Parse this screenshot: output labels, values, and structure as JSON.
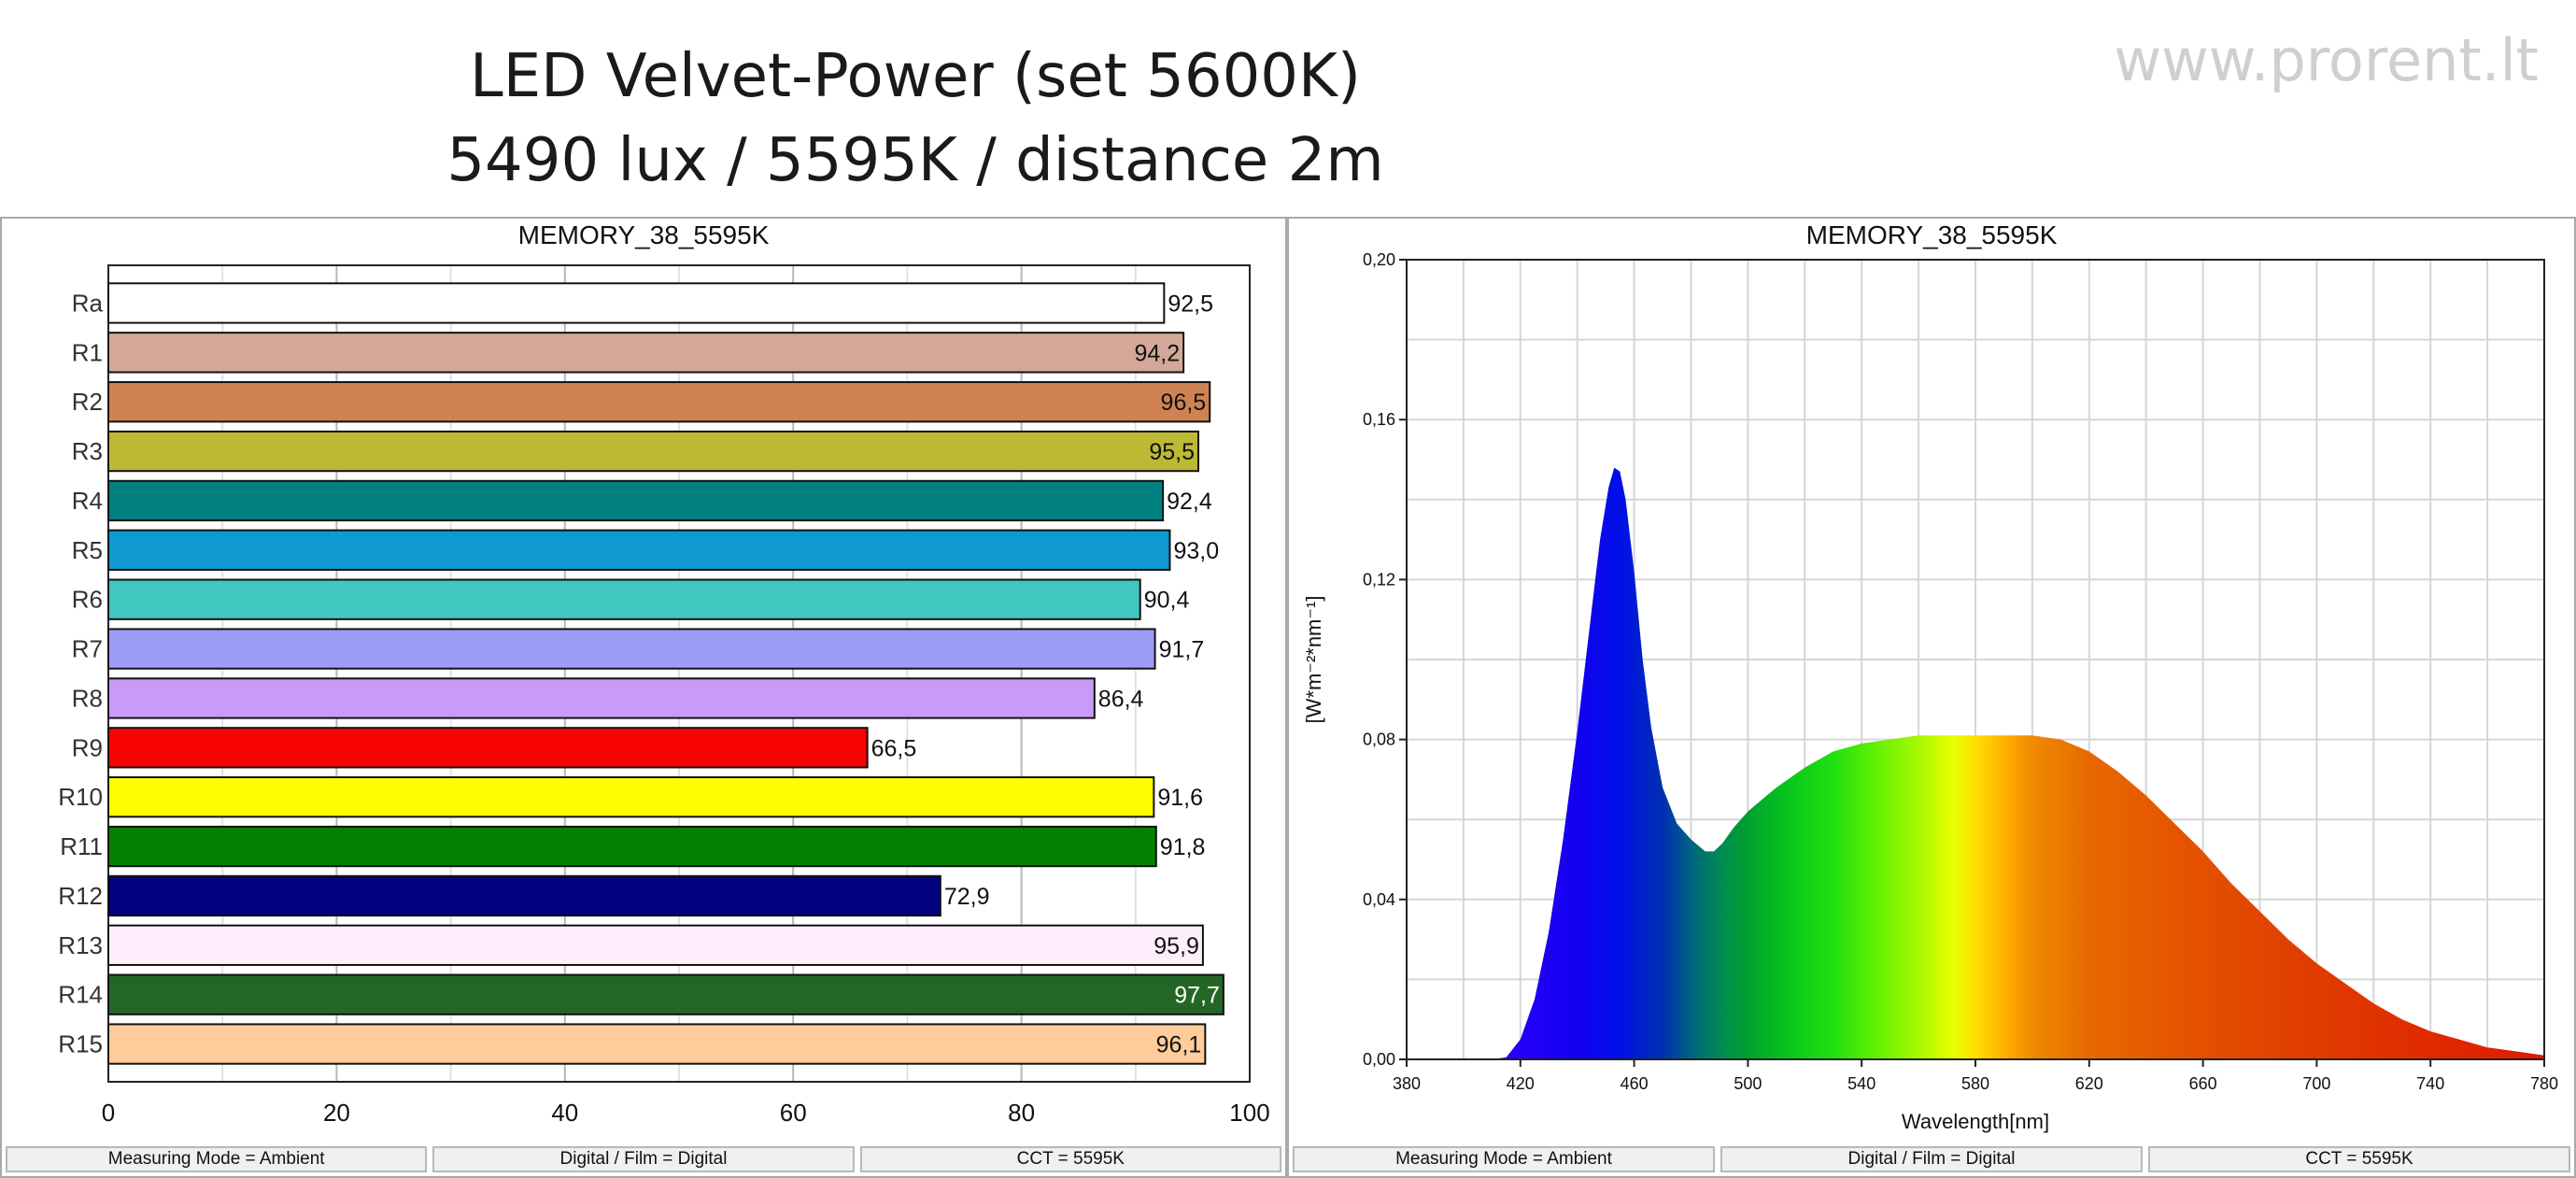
{
  "header": {
    "title_line1": "LED Velvet-Power (set 5600K)",
    "title_line2": "5490 lux / 5595K / distance 2m",
    "watermark": "www.prorent.lt"
  },
  "chart_data": [
    {
      "type": "bar",
      "orientation": "horizontal",
      "title": "MEMORY_38_5595K",
      "categories": [
        "Ra",
        "R1",
        "R2",
        "R3",
        "R4",
        "R5",
        "R6",
        "R7",
        "R8",
        "R9",
        "R10",
        "R11",
        "R12",
        "R13",
        "R14",
        "R15"
      ],
      "values": [
        92.5,
        94.2,
        96.5,
        95.5,
        92.4,
        93.0,
        90.4,
        91.7,
        86.4,
        66.5,
        91.6,
        91.8,
        72.9,
        95.9,
        97.7,
        96.1
      ],
      "value_labels": [
        "92,5",
        "94,2",
        "96,5",
        "95,5",
        "92,4",
        "93,0",
        "90,4",
        "91,7",
        "86,4",
        "66,5",
        "91,6",
        "91,8",
        "72,9",
        "95,9",
        "97,7",
        "96,1"
      ],
      "bar_colors": [
        "#ffffff",
        "#d4a898",
        "#cf8352",
        "#bdb934",
        "#007f80",
        "#0e99d0",
        "#40c8c0",
        "#9e9df6",
        "#c99af8",
        "#f90202",
        "#fffd03",
        "#028003",
        "#02017e",
        "#ffeefb",
        "#246626",
        "#ffcc9a"
      ],
      "xlim": [
        0,
        100
      ],
      "xticks": [
        "0",
        "20",
        "40",
        "60",
        "80",
        "100"
      ],
      "xlabel": "",
      "ylabel": "",
      "grid": true
    },
    {
      "type": "area",
      "title": "MEMORY_38_5595K",
      "xlabel": "Wavelength[nm]",
      "ylabel": "[W*m⁻²*nm⁻¹]",
      "xlim": [
        380,
        780
      ],
      "ylim": [
        0,
        0.2
      ],
      "xticks": [
        "380",
        "420",
        "460",
        "500",
        "540",
        "580",
        "620",
        "660",
        "700",
        "740",
        "780"
      ],
      "yticks": [
        "0,00",
        "0,04",
        "0,08",
        "0,12",
        "0,16",
        "0,20"
      ],
      "grid": true,
      "fill": "visible-spectrum-gradient",
      "x": [
        380,
        410,
        415,
        420,
        425,
        430,
        435,
        440,
        445,
        448,
        451,
        453,
        455,
        457,
        460,
        463,
        466,
        470,
        475,
        480,
        485,
        488,
        491,
        495,
        500,
        505,
        510,
        520,
        530,
        540,
        550,
        560,
        570,
        580,
        590,
        600,
        610,
        620,
        630,
        640,
        650,
        660,
        670,
        680,
        690,
        700,
        710,
        720,
        730,
        740,
        750,
        760,
        770,
        780
      ],
      "y": [
        0,
        0,
        0.0005,
        0.005,
        0.015,
        0.032,
        0.055,
        0.082,
        0.112,
        0.13,
        0.143,
        0.148,
        0.147,
        0.14,
        0.122,
        0.1,
        0.083,
        0.068,
        0.059,
        0.055,
        0.052,
        0.052,
        0.054,
        0.058,
        0.062,
        0.065,
        0.068,
        0.073,
        0.077,
        0.079,
        0.08,
        0.081,
        0.081,
        0.081,
        0.081,
        0.081,
        0.08,
        0.077,
        0.072,
        0.066,
        0.059,
        0.052,
        0.044,
        0.037,
        0.03,
        0.024,
        0.019,
        0.014,
        0.01,
        0.007,
        0.005,
        0.003,
        0.002,
        0.001
      ]
    }
  ],
  "status_bar": {
    "mode": "Measuring Mode = Ambient",
    "film": "Digital / Film = Digital",
    "cct": "CCT = 5595K"
  }
}
